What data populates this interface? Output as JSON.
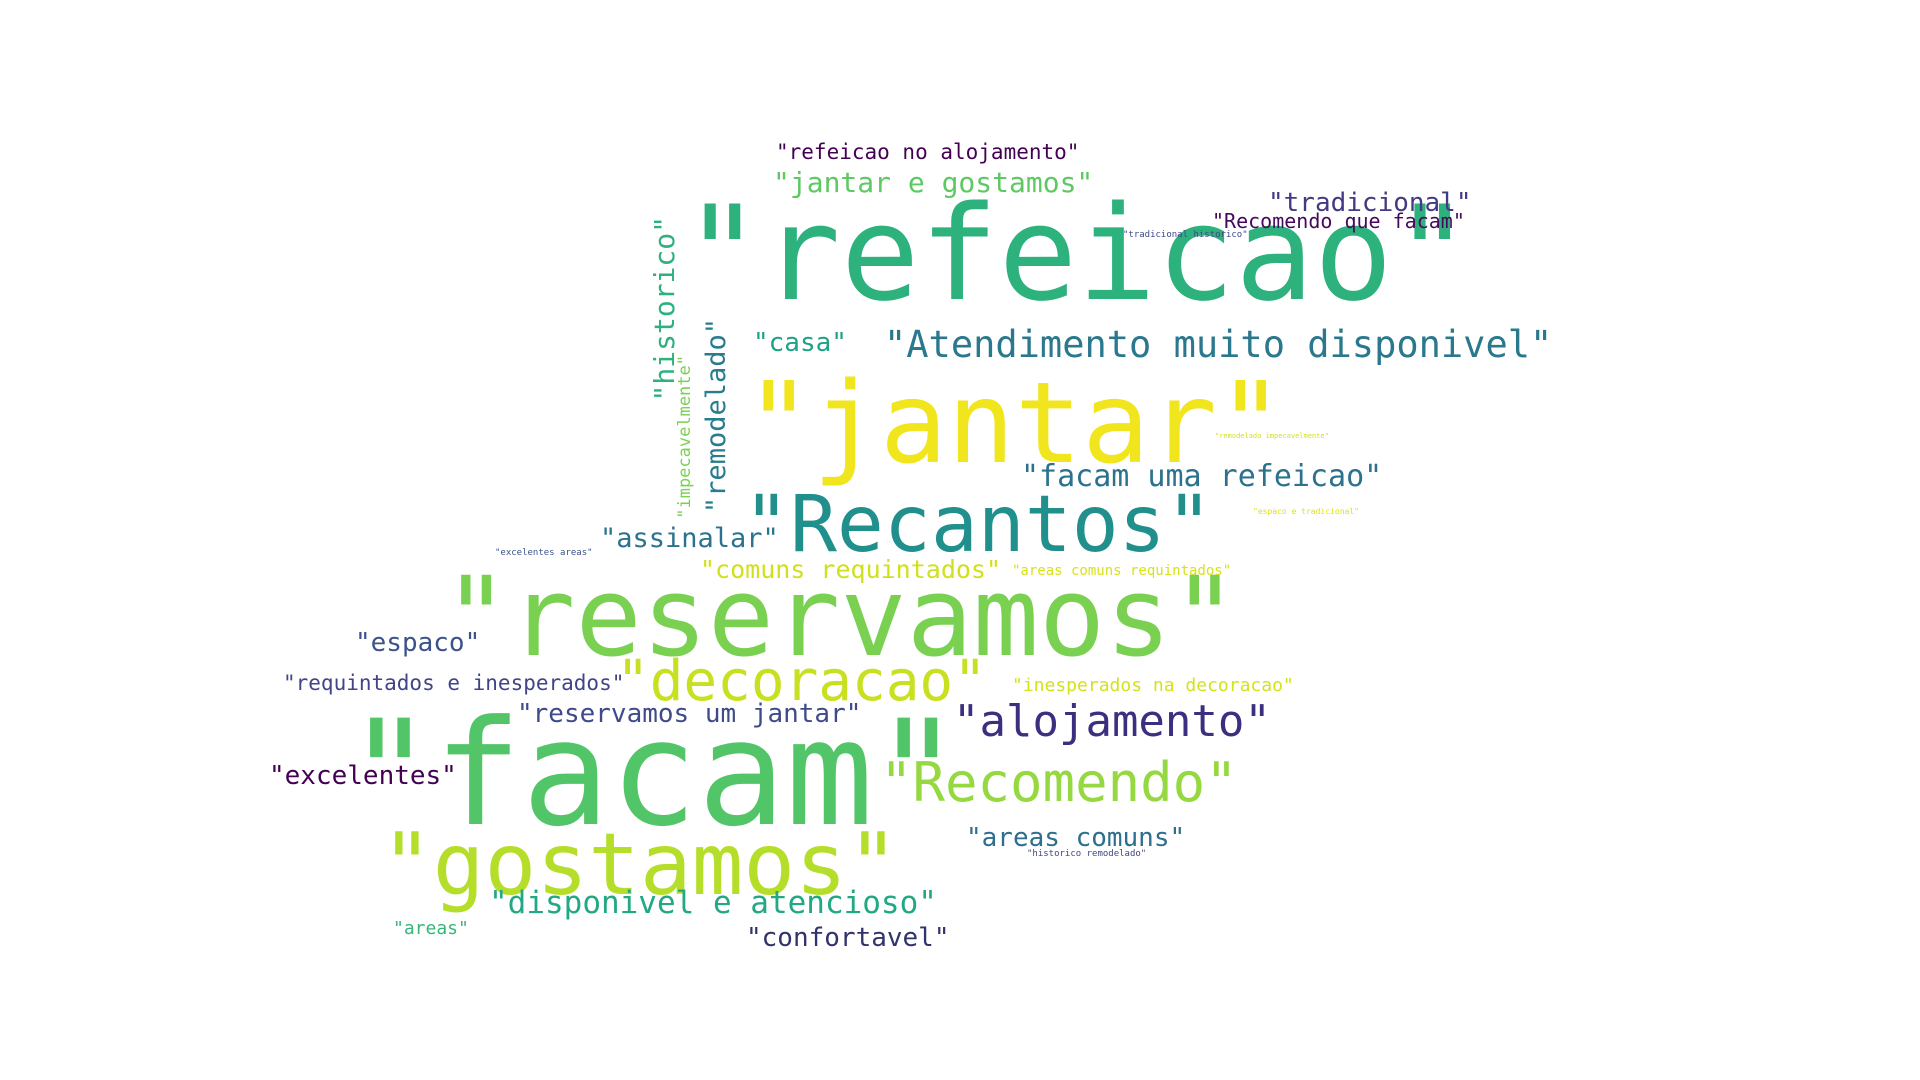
{
  "palette": {
    "dark_purple": "#440154",
    "indigo": "#3b2f7f",
    "blue": "#355f8d",
    "teal_blue": "#2c728e",
    "teal": "#21908d",
    "sea_green": "#27ad81",
    "green": "#5ec962",
    "lime": "#8fd744",
    "yellow_green": "#c2df23",
    "yellow": "#f5e61e"
  },
  "words": [
    {
      "id": "refeicao",
      "text": "\"refeicao\"",
      "color": "#2db27d"
    },
    {
      "id": "jantar",
      "text": "\"jantar\"",
      "color": "#f1e51d"
    },
    {
      "id": "recantos",
      "text": "\"Recantos\"",
      "color": "#21908d"
    },
    {
      "id": "reservamos",
      "text": "\"reservamos\"",
      "color": "#7ad151"
    },
    {
      "id": "decoracao",
      "text": "\"decoracao\"",
      "color": "#c8e020"
    },
    {
      "id": "facam",
      "text": "\"facam\"",
      "color": "#52c569"
    },
    {
      "id": "alojamento",
      "text": "\"alojamento\"",
      "color": "#3b2f7f"
    },
    {
      "id": "recomendo",
      "text": "\"Recomendo\"",
      "color": "#95d840"
    },
    {
      "id": "gostamos",
      "text": "\"gostamos\"",
      "color": "#b5de2b"
    },
    {
      "id": "refeicao-no-alojamento",
      "text": "\"refeicao no alojamento\"",
      "color": "#440154"
    },
    {
      "id": "jantar-e-gostamos",
      "text": "\"jantar e gostamos\"",
      "color": "#5ec962"
    },
    {
      "id": "tradicional",
      "text": "\"tradicional\"",
      "color": "#443983"
    },
    {
      "id": "recomendo-que-facam",
      "text": "\"Recomendo que facam\"",
      "color": "#46085c"
    },
    {
      "id": "tradicional-historico",
      "text": "\"tradicional historico\"",
      "color": "#3e4989"
    },
    {
      "id": "historico",
      "text": "\"historico\"",
      "color": "#2db27d"
    },
    {
      "id": "impecavelmente",
      "text": "\"impecavelmente\"",
      "color": "#7ad151"
    },
    {
      "id": "remodelado",
      "text": "\"remodelado\"",
      "color": "#287c8e"
    },
    {
      "id": "casa",
      "text": "\"casa\"",
      "color": "#1fa187"
    },
    {
      "id": "atendimento",
      "text": "\"Atendimento muito disponivel\"",
      "color": "#2a788e"
    },
    {
      "id": "facam-uma-refeicao",
      "text": "\"facam uma refeicao\"",
      "color": "#2c728e"
    },
    {
      "id": "remodelado-impecavelmente",
      "text": "\"remodelado impecavelmente\"",
      "color": "#d2e21b"
    },
    {
      "id": "espaco-e-tradicional",
      "text": "\"espaco e tradicional\"",
      "color": "#dde318"
    },
    {
      "id": "assinalar",
      "text": "\"assinalar\"",
      "color": "#2c728e"
    },
    {
      "id": "excelentes-areas",
      "text": "\"excelentes areas\"",
      "color": "#3b528b"
    },
    {
      "id": "comuns-requintados",
      "text": "\"comuns requintados\"",
      "color": "#d0e11c"
    },
    {
      "id": "areas-comuns-requintados",
      "text": "\"areas comuns requintados\"",
      "color": "#d8e219"
    },
    {
      "id": "espaco",
      "text": "\"espaco\"",
      "color": "#3b528b"
    },
    {
      "id": "requintados-e-inesperados",
      "text": "\"requintados e inesperados\"",
      "color": "#414487"
    },
    {
      "id": "inesperados-na-decoracao",
      "text": "\"inesperados na decoracao\"",
      "color": "#d5e21a"
    },
    {
      "id": "reservamos-um-jantar",
      "text": "\"reservamos um jantar\"",
      "color": "#3e4a89"
    },
    {
      "id": "excelentes",
      "text": "\"excelentes\"",
      "color": "#440154"
    },
    {
      "id": "areas-comuns",
      "text": "\"areas comuns\"",
      "color": "#2e6e8e"
    },
    {
      "id": "historico-remodelado",
      "text": "\"historico remodelado\"",
      "color": "#3f4788"
    },
    {
      "id": "disponivel-e-atencioso",
      "text": "\"disponivel e atencioso\"",
      "color": "#22a884"
    },
    {
      "id": "areas",
      "text": "\"areas\"",
      "color": "#35b779"
    },
    {
      "id": "confortavel",
      "text": "\"confortavel\"",
      "color": "#31336b"
    }
  ]
}
